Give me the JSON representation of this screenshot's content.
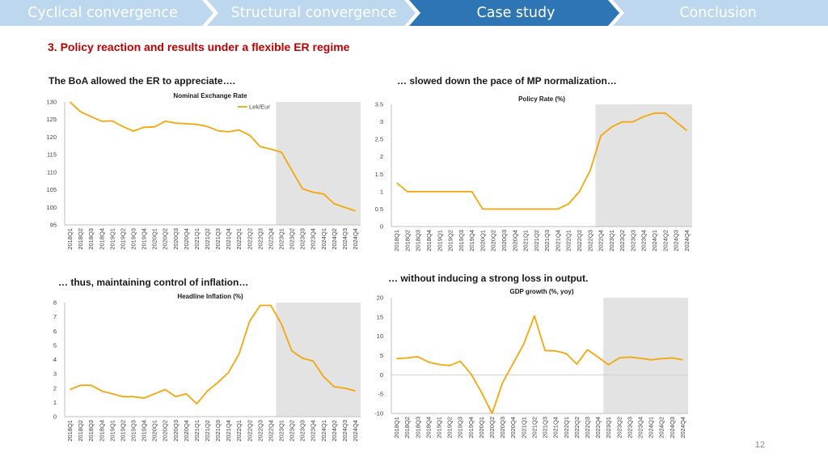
{
  "nav": {
    "tabs": [
      {
        "label": "Cyclical convergence",
        "active": false
      },
      {
        "label": "Structural convergence",
        "active": false
      },
      {
        "label": "Case study",
        "active": true
      },
      {
        "label": "Conclusion",
        "active": false
      }
    ],
    "colors": {
      "active_bg": "#2e75b6",
      "inactive_bg": "#bdd7ee",
      "inactive_text": "#ffffff",
      "active_text": "#ffffff"
    }
  },
  "section_title": "3. Policy reaction and results under a flexible ER regime",
  "captions": {
    "top_left": "The BoA allowed the ER to appreciate….",
    "top_right": "… slowed down the pace of MP normalization…",
    "bottom_left": "… thus, maintaining control of inflation…",
    "bottom_right": "… without inducing a strong loss in output."
  },
  "page_number": "12",
  "chart_data": [
    {
      "type": "line",
      "title": "Nominal Exchange Rate",
      "legend": [
        "Lek/Eur"
      ],
      "ylim": [
        95,
        130
      ],
      "yticks": [
        95,
        100,
        105,
        110,
        115,
        120,
        125,
        130
      ],
      "shade_start": "2023Q1",
      "categories": [
        "2018Q1",
        "2018Q2",
        "2018Q3",
        "2018Q4",
        "2019Q1",
        "2019Q2",
        "2019Q3",
        "2019Q4",
        "2020Q1",
        "2020Q2",
        "2020Q3",
        "2020Q4",
        "2021Q1",
        "2021Q2",
        "2021Q3",
        "2021Q4",
        "2022Q1",
        "2022Q2",
        "2022Q3",
        "2022Q4",
        "2023Q1",
        "2023Q2",
        "2023Q3",
        "2023Q4",
        "2024Q1",
        "2024Q2",
        "2024Q3",
        "2024Q4"
      ],
      "series": [
        {
          "name": "Lek/Eur",
          "values": [
            130,
            127.2,
            125.8,
            124.5,
            124.6,
            123,
            121.7,
            122.8,
            122.9,
            124.5,
            124,
            123.8,
            123.6,
            123,
            121.8,
            121.5,
            122,
            120.5,
            117.3,
            116.6,
            115.7,
            110.5,
            105.3,
            104.3,
            103.8,
            101,
            100,
            99
          ]
        }
      ]
    },
    {
      "type": "line",
      "title": "Policy Rate (%)",
      "ylim": [
        0,
        3.5
      ],
      "yticks": [
        0,
        0.5,
        1,
        1.5,
        2,
        2.5,
        3,
        3.5
      ],
      "shade_start": "2022Q4",
      "categories": [
        "2018Q1",
        "2018Q2",
        "2018Q3",
        "2018Q4",
        "2019Q1",
        "2019Q2",
        "2019Q3",
        "2019Q4",
        "2020Q1",
        "2020Q2",
        "2020Q3",
        "2020Q4",
        "2021Q1",
        "2021Q2",
        "2021Q3",
        "2021Q4",
        "2022Q1",
        "2022Q2",
        "2022Q3",
        "2022Q4",
        "2023Q1",
        "2023Q2",
        "2023Q3",
        "2023Q4",
        "2024Q1",
        "2024Q2",
        "2024Q3",
        "2024Q4"
      ],
      "series": [
        {
          "name": "Policy Rate",
          "values": [
            1.25,
            1,
            1,
            1,
            1,
            1,
            1,
            1,
            0.5,
            0.5,
            0.5,
            0.5,
            0.5,
            0.5,
            0.5,
            0.5,
            0.65,
            1,
            1.6,
            2.6,
            2.85,
            3,
            3,
            3.15,
            3.25,
            3.25,
            3,
            2.75
          ]
        }
      ]
    },
    {
      "type": "line",
      "title": "Headline Inflation (%)",
      "ylim": [
        0,
        8
      ],
      "yticks": [
        0,
        1,
        2,
        3,
        4,
        5,
        6,
        7,
        8
      ],
      "shade_start": "2023Q1",
      "categories": [
        "2018Q1",
        "2018Q2",
        "2018Q3",
        "2018Q4",
        "2019Q1",
        "2019Q2",
        "2019Q3",
        "2019Q4",
        "2020Q1",
        "2020Q2",
        "2020Q3",
        "2020Q4",
        "2021Q1",
        "2021Q2",
        "2021Q3",
        "2021Q4",
        "2022Q1",
        "2022Q2",
        "2022Q3",
        "2022Q4",
        "2023Q1",
        "2023Q2",
        "2023Q3",
        "2023Q4",
        "2024Q1",
        "2024Q2",
        "2024Q3",
        "2024Q4"
      ],
      "series": [
        {
          "name": "Headline Inflation",
          "values": [
            1.9,
            2.2,
            2.2,
            1.8,
            1.6,
            1.4,
            1.4,
            1.3,
            1.6,
            1.9,
            1.4,
            1.6,
            0.9,
            1.8,
            2.4,
            3.1,
            4.4,
            6.7,
            7.8,
            7.8,
            6.5,
            4.6,
            4.1,
            3.9,
            2.8,
            2.1,
            2,
            1.8
          ]
        }
      ]
    },
    {
      "type": "line",
      "title": "GDP growth (%, yoy)",
      "ylim": [
        -10,
        20
      ],
      "yticks": [
        -10,
        -5,
        0,
        5,
        10,
        15,
        20
      ],
      "shade_start": "2023Q1",
      "categories": [
        "2018Q1",
        "2018Q2",
        "2018Q3",
        "2018Q4",
        "2019Q1",
        "2019Q2",
        "2019Q3",
        "2019Q4",
        "2020Q1",
        "2020Q2",
        "2020Q3",
        "2020Q4",
        "2021Q1",
        "2021Q2",
        "2021Q3",
        "2021Q4",
        "2022Q1",
        "2022Q2",
        "2022Q3",
        "2022Q4",
        "2023Q1",
        "2023Q2",
        "2023Q3",
        "2023Q4",
        "2024Q1",
        "2024Q2",
        "2024Q3",
        "2024Q4"
      ],
      "series": [
        {
          "name": "GDP growth",
          "values": [
            4.2,
            4.4,
            4.7,
            3.3,
            2.7,
            2.4,
            3.5,
            0.3,
            -4.5,
            -10,
            -2,
            3,
            8,
            15.3,
            6.3,
            6.2,
            5.5,
            2.8,
            6.5,
            4.6,
            2.6,
            4.4,
            4.6,
            4.3,
            3.9,
            4.2,
            4.4,
            3.9
          ]
        }
      ]
    }
  ],
  "style": {
    "line_color": "#f5a60a",
    "shade_color": "#e3e3e3",
    "axis_color": "#bfbfbf",
    "tick_color": "#404040",
    "title_color": "#1a1a1a"
  }
}
